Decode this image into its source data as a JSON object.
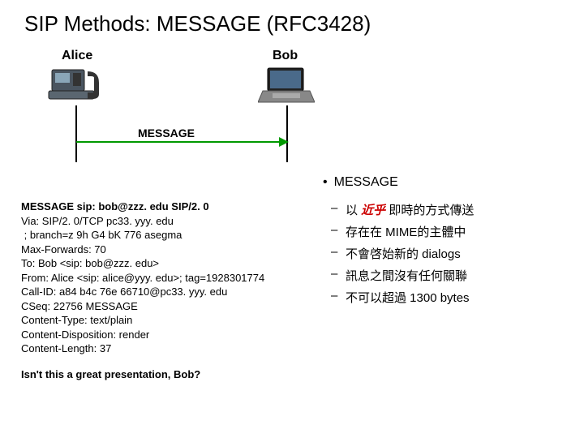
{
  "title": "SIP Methods: MESSAGE (RFC3428)",
  "diagram": {
    "alice_label": "Alice",
    "bob_label": "Bob",
    "arrow_label": "MESSAGE",
    "line_color": "#009900",
    "lifeline_color": "#000000"
  },
  "sip_message": {
    "lines": [
      {
        "text": "MESSAGE sip: bob@zzz. edu SIP/2. 0",
        "bold": true
      },
      {
        "text": "Via: SIP/2. 0/TCP pc33. yyy. edu",
        "bold": false
      },
      {
        "text": " ; branch=z 9h G4 bK 776 asegma",
        "bold": false
      },
      {
        "text": "Max-Forwards: 70",
        "bold": false
      },
      {
        "text": "To: Bob <sip: bob@zzz. edu>",
        "bold": false
      },
      {
        "text": "From: Alice <sip: alice@yyy. edu>; tag=1928301774",
        "bold": false
      },
      {
        "text": "Call-ID: a84 b4c 76e 66710@pc33. yyy. edu",
        "bold": false
      },
      {
        "text": "CSeq: 22756 MESSAGE",
        "bold": false
      },
      {
        "text": "Content-Type: text/plain",
        "bold": false
      },
      {
        "text": "Content-Disposition: render",
        "bold": false
      },
      {
        "text": "Content-Length: 37",
        "bold": false
      }
    ],
    "footer": "Isn't this a great presentation, Bob?"
  },
  "bullets": {
    "heading": "MESSAGE",
    "items": [
      {
        "pre": "以 ",
        "emph": "近乎",
        "post": " 即時的方式傳送"
      },
      {
        "pre": "存在在 MIME的主體中",
        "emph": "",
        "post": ""
      },
      {
        "pre": "不會啓始新的 dialogs",
        "emph": "",
        "post": ""
      },
      {
        "pre": "訊息之間沒有任何關聯",
        "emph": "",
        "post": ""
      },
      {
        "pre": "不可以超過 1300 bytes",
        "emph": "",
        "post": ""
      }
    ]
  },
  "colors": {
    "emphasis": "#cc0000",
    "background": "#ffffff",
    "text": "#000000"
  }
}
